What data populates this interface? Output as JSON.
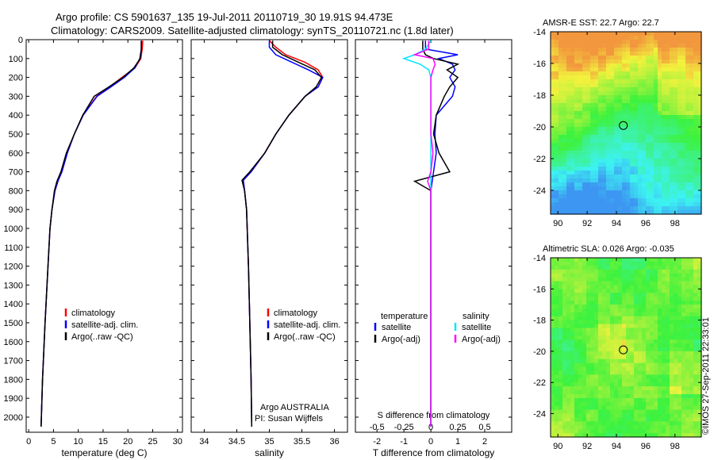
{
  "header": {
    "line1": "Argo profile: CS 5901637_135 19-Jul-2011 20110719_30 19.91S 94.473E",
    "line2": "Climatology: CARS2009. Satellite-adjusted climatology: synTS_20110721.nc (1.8d later)"
  },
  "colors": {
    "climatology": "#ff0000",
    "satellite": "#0000ff",
    "argo": "#000000",
    "s_satellite": "#00e5ff",
    "s_argo": "#ff00ff"
  },
  "chart_data": [
    {
      "type": "line",
      "id": "temperature",
      "xlabel": "temperature (deg C)",
      "ylabel": "",
      "xlim": [
        -0.5,
        31
      ],
      "ylim": [
        2080,
        0
      ],
      "xticks": [
        0,
        5,
        10,
        15,
        20,
        25,
        30
      ],
      "yticks": [
        0,
        100,
        200,
        300,
        400,
        500,
        600,
        700,
        800,
        900,
        1000,
        1100,
        1200,
        1300,
        1400,
        1500,
        1600,
        1700,
        1800,
        1900,
        2000
      ],
      "legend": [
        "climatology",
        "satellite-adj. clim.",
        "Argo(..raw -QC)"
      ],
      "series": [
        {
          "name": "climatology",
          "depth": [
            5,
            50,
            100,
            150,
            200,
            250,
            300,
            400,
            500,
            600,
            700,
            750,
            800,
            900,
            1000,
            1200,
            1500,
            1800,
            2050
          ],
          "values": [
            23.0,
            22.9,
            22.6,
            21.4,
            18.8,
            16.3,
            13.7,
            10.9,
            9.2,
            7.8,
            6.7,
            5.9,
            5.3,
            4.7,
            4.3,
            3.9,
            3.3,
            2.8,
            2.5
          ]
        },
        {
          "name": "satellite-adj. clim.",
          "depth": [
            5,
            50,
            100,
            150,
            200,
            250,
            300,
            400,
            500,
            600,
            700,
            750,
            800,
            900,
            1000,
            1200,
            1500,
            1800,
            2050
          ],
          "values": [
            22.7,
            22.7,
            22.4,
            21.4,
            19.3,
            16.6,
            13.8,
            11.0,
            9.2,
            7.8,
            6.7,
            5.9,
            5.3,
            4.7,
            4.3,
            3.9,
            3.3,
            2.8,
            2.5
          ]
        },
        {
          "name": "Argo(..raw -QC)",
          "depth": [
            5,
            50,
            100,
            150,
            200,
            250,
            300,
            400,
            500,
            600,
            700,
            750,
            800,
            900,
            1000,
            1200,
            1500,
            1800,
            2050
          ],
          "values": [
            22.7,
            22.7,
            22.5,
            21.2,
            19.0,
            16.2,
            13.2,
            10.9,
            9.2,
            7.6,
            6.5,
            5.7,
            5.2,
            4.7,
            4.3,
            3.9,
            3.3,
            2.8,
            2.5
          ]
        }
      ]
    },
    {
      "type": "line",
      "id": "salinity",
      "xlabel": "salinity",
      "xlim": [
        33.8,
        36.2
      ],
      "ylim": [
        2080,
        0
      ],
      "xticks": [
        34,
        34.5,
        35,
        35.5,
        36
      ],
      "legend": [
        "climatology",
        "satellite-adj. clim.",
        "Argo(..raw -QC)"
      ],
      "annotation": [
        "Argo AUSTRALIA",
        "PI: Susan Wijffels"
      ],
      "series": [
        {
          "name": "climatology",
          "depth": [
            5,
            40,
            80,
            120,
            160,
            200,
            250,
            300,
            400,
            500,
            600,
            700,
            745,
            800,
            900,
            1000,
            1200,
            1500,
            1800,
            2050
          ],
          "values": [
            35.0,
            35.1,
            35.25,
            35.55,
            35.75,
            35.82,
            35.75,
            35.55,
            35.3,
            35.1,
            34.93,
            34.72,
            34.6,
            34.62,
            34.65,
            34.66,
            34.68,
            34.7,
            34.72,
            34.73
          ]
        },
        {
          "name": "satellite-adj. clim.",
          "depth": [
            5,
            40,
            80,
            120,
            160,
            200,
            250,
            300,
            400,
            500,
            600,
            700,
            745,
            800,
            900,
            1000,
            1200,
            1500,
            1800,
            2050
          ],
          "values": [
            35.0,
            35.0,
            35.1,
            35.35,
            35.6,
            35.82,
            35.75,
            35.55,
            35.3,
            35.1,
            34.93,
            34.72,
            34.6,
            34.62,
            34.65,
            34.66,
            34.68,
            34.7,
            34.72,
            34.73
          ]
        },
        {
          "name": "Argo(..raw -QC)",
          "depth": [
            5,
            40,
            80,
            120,
            160,
            200,
            250,
            300,
            400,
            500,
            600,
            700,
            745,
            800,
            900,
            1000,
            1200,
            1500,
            1800,
            2050
          ],
          "values": [
            35.05,
            35.05,
            35.2,
            35.45,
            35.7,
            35.8,
            35.72,
            35.55,
            35.3,
            35.1,
            34.93,
            34.7,
            34.58,
            34.62,
            34.65,
            34.66,
            34.68,
            34.7,
            34.72,
            34.73
          ]
        }
      ]
    },
    {
      "type": "line",
      "id": "differences",
      "xlabel": "T difference from climatology",
      "x2label": "S difference from climatology",
      "xlim": [
        -2.8,
        3.0
      ],
      "ylim": [
        2080,
        0
      ],
      "xticks": [
        -2,
        -1,
        0,
        1,
        2
      ],
      "x2ticks": [
        -0.5,
        -0.25,
        0,
        0.25,
        0.5
      ],
      "x2ticklabels": [
        "-0.5",
        "-0.25",
        "0",
        "0.25",
        "0.5"
      ],
      "legend_titles": [
        "temperature",
        "salinity"
      ],
      "legend": [
        "satellite",
        "Argo(-adj)",
        "satellite",
        "Argo(-adj)"
      ],
      "series": [
        {
          "name": "T satellite",
          "depth": [
            5,
            50,
            80,
            100,
            130,
            160,
            200,
            250,
            300,
            400,
            500,
            600,
            700,
            750,
            800,
            1000,
            1500,
            2050
          ],
          "values": [
            -0.2,
            -0.2,
            1.0,
            0.3,
            0.8,
            0.9,
            0.7,
            0.9,
            0.8,
            0.2,
            0.15,
            0.2,
            0.1,
            0.05,
            0.0,
            0.0,
            0.0,
            0.0
          ]
        },
        {
          "name": "T Argo(-adj)",
          "depth": [
            5,
            50,
            80,
            100,
            130,
            160,
            200,
            250,
            300,
            400,
            500,
            600,
            700,
            750,
            800,
            1000,
            1500,
            2050
          ],
          "values": [
            -0.3,
            -0.3,
            -0.2,
            0.1,
            1.0,
            0.6,
            1.0,
            0.7,
            0.5,
            0.2,
            0.1,
            0.3,
            0.7,
            -0.6,
            0.0,
            0.0,
            0.0,
            0.0
          ]
        },
        {
          "name": "S satellite",
          "depth": [
            5,
            50,
            80,
            100,
            130,
            160,
            200,
            250,
            300,
            400,
            500,
            600,
            700,
            750,
            800,
            1000,
            1500,
            2050
          ],
          "values": [
            0.0,
            -0.05,
            -0.15,
            -0.25,
            -0.1,
            -0.02,
            0.0,
            0.0,
            0.0,
            0.0,
            0.0,
            0.0,
            0.0,
            0.0,
            0.0,
            0.0,
            0.0,
            0.0
          ]
        },
        {
          "name": "S Argo(-adj)",
          "depth": [
            5,
            50,
            80,
            100,
            130,
            160,
            200,
            250,
            300,
            400,
            500,
            600,
            700,
            750,
            800,
            1000,
            1500,
            2050
          ],
          "values": [
            -0.02,
            -0.02,
            -0.15,
            0.02,
            0.04,
            0.02,
            0.0,
            0.0,
            0.0,
            0.0,
            0.0,
            0.02,
            0.0,
            -0.03,
            0.0,
            0.0,
            0.0,
            0.0
          ]
        }
      ]
    },
    {
      "type": "heatmap",
      "id": "sst-map",
      "title": "AMSR-E SST: 22.7 Argo: 22.7",
      "xlim": [
        89.5,
        99.8
      ],
      "ylim": [
        -25.5,
        -14
      ],
      "xticks": [
        90,
        92,
        94,
        96,
        98
      ],
      "yticks": [
        -14,
        -16,
        -18,
        -20,
        -22,
        -24
      ],
      "marker": {
        "lon": 94.47,
        "lat": -19.91
      }
    },
    {
      "type": "heatmap",
      "id": "sla-map",
      "title": "Altimetric SLA: 0.026 Argo: -0.035",
      "xlim": [
        89.5,
        99.8
      ],
      "ylim": [
        -25.5,
        -14
      ],
      "xticks": [
        90,
        92,
        94,
        96,
        98
      ],
      "yticks": [
        -14,
        -16,
        -18,
        -20,
        -22,
        -24
      ],
      "marker": {
        "lon": 94.47,
        "lat": -19.91
      }
    }
  ],
  "footer": {
    "credit": "©IMOS 27-Sep-2011 22:33:01"
  }
}
